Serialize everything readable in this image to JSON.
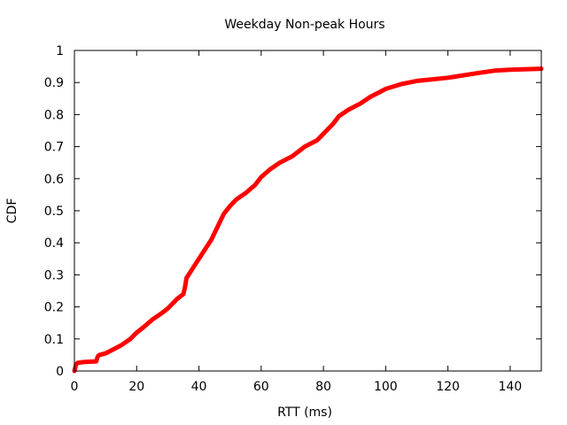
{
  "chart_data": {
    "type": "line",
    "title": "Weekday Non-peak Hours",
    "xlabel": "RTT (ms)",
    "ylabel": "CDF",
    "xlim": [
      0,
      150
    ],
    "ylim": [
      0,
      1
    ],
    "x_ticks": [
      "0",
      "20",
      "40",
      "60",
      "80",
      "100",
      "120",
      "140"
    ],
    "y_ticks": [
      "0",
      "0.1",
      "0.2",
      "0.3",
      "0.4",
      "0.5",
      "0.6",
      "0.7",
      "0.8",
      "0.9",
      "1"
    ],
    "grid": false,
    "series": [
      {
        "color": "#ff0000",
        "points": [
          [
            0,
            0.0
          ],
          [
            0.5,
            0.02
          ],
          [
            1,
            0.025
          ],
          [
            3,
            0.028
          ],
          [
            7,
            0.03
          ],
          [
            7.5,
            0.045
          ],
          [
            8,
            0.05
          ],
          [
            10,
            0.055
          ],
          [
            12,
            0.065
          ],
          [
            15,
            0.08
          ],
          [
            18,
            0.1
          ],
          [
            20,
            0.12
          ],
          [
            22,
            0.135
          ],
          [
            25,
            0.16
          ],
          [
            28,
            0.18
          ],
          [
            30,
            0.195
          ],
          [
            33,
            0.225
          ],
          [
            35,
            0.24
          ],
          [
            35.5,
            0.26
          ],
          [
            36,
            0.29
          ],
          [
            38,
            0.32
          ],
          [
            40,
            0.35
          ],
          [
            42,
            0.38
          ],
          [
            44,
            0.41
          ],
          [
            46,
            0.45
          ],
          [
            48,
            0.49
          ],
          [
            50,
            0.515
          ],
          [
            52,
            0.535
          ],
          [
            55,
            0.555
          ],
          [
            58,
            0.58
          ],
          [
            60,
            0.605
          ],
          [
            63,
            0.63
          ],
          [
            66,
            0.65
          ],
          [
            70,
            0.67
          ],
          [
            74,
            0.7
          ],
          [
            78,
            0.72
          ],
          [
            80,
            0.74
          ],
          [
            83,
            0.77
          ],
          [
            85,
            0.795
          ],
          [
            88,
            0.815
          ],
          [
            92,
            0.835
          ],
          [
            95,
            0.855
          ],
          [
            98,
            0.87
          ],
          [
            100,
            0.88
          ],
          [
            105,
            0.895
          ],
          [
            110,
            0.905
          ],
          [
            120,
            0.915
          ],
          [
            130,
            0.93
          ],
          [
            135,
            0.937
          ],
          [
            140,
            0.94
          ],
          [
            150,
            0.943
          ]
        ]
      }
    ]
  }
}
